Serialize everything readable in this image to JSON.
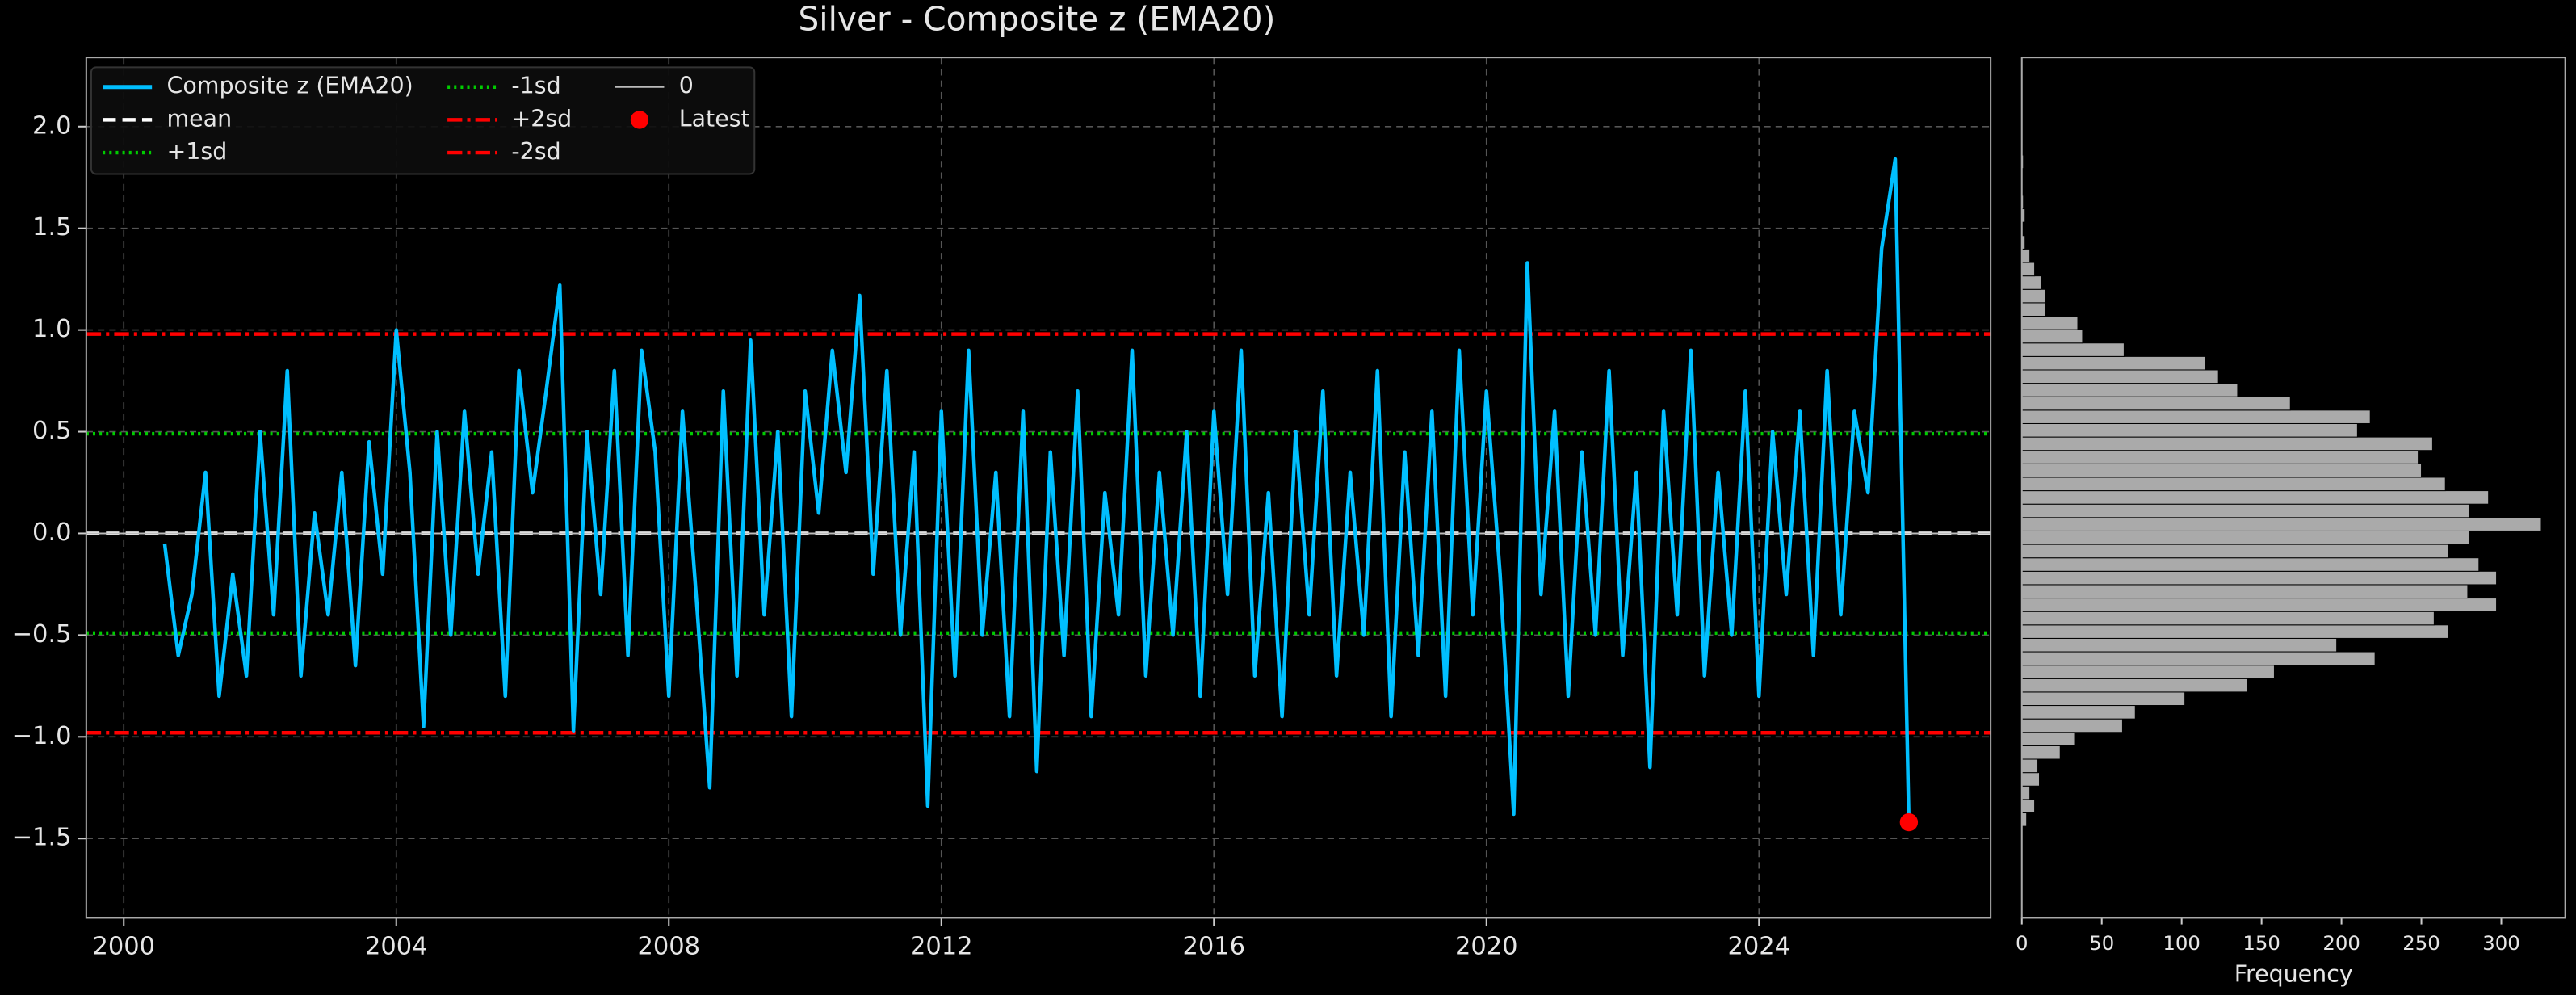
{
  "chart_data": [
    {
      "type": "line",
      "title": "Silver - Composite z (EMA20)",
      "x": [
        2000.6,
        2000.8,
        2001.0,
        2001.2,
        2001.4,
        2001.6,
        2001.8,
        2002.0,
        2002.2,
        2002.4,
        2002.6,
        2002.8,
        2003.0,
        2003.2,
        2003.4,
        2003.6,
        2003.8,
        2004.0,
        2004.2,
        2004.4,
        2004.6,
        2004.8,
        2005.0,
        2005.2,
        2005.4,
        2005.6,
        2005.8,
        2006.0,
        2006.2,
        2006.4,
        2006.6,
        2006.8,
        2007.0,
        2007.2,
        2007.4,
        2007.6,
        2007.8,
        2008.0,
        2008.2,
        2008.4,
        2008.6,
        2008.8,
        2009.0,
        2009.2,
        2009.4,
        2009.6,
        2009.8,
        2010.0,
        2010.2,
        2010.4,
        2010.6,
        2010.8,
        2011.0,
        2011.2,
        2011.4,
        2011.6,
        2011.8,
        2012.0,
        2012.2,
        2012.4,
        2012.6,
        2012.8,
        2013.0,
        2013.2,
        2013.4,
        2013.6,
        2013.8,
        2014.0,
        2014.2,
        2014.4,
        2014.6,
        2014.8,
        2015.0,
        2015.2,
        2015.4,
        2015.6,
        2015.8,
        2016.0,
        2016.2,
        2016.4,
        2016.6,
        2016.8,
        2017.0,
        2017.2,
        2017.4,
        2017.6,
        2017.8,
        2018.0,
        2018.2,
        2018.4,
        2018.6,
        2018.8,
        2019.0,
        2019.2,
        2019.4,
        2019.6,
        2019.8,
        2020.0,
        2020.2,
        2020.4,
        2020.6,
        2020.8,
        2021.0,
        2021.2,
        2021.4,
        2021.6,
        2021.8,
        2022.0,
        2022.2,
        2022.4,
        2022.6,
        2022.8,
        2023.0,
        2023.2,
        2023.4,
        2023.6,
        2023.8,
        2024.0,
        2024.2,
        2024.4,
        2024.6,
        2024.8,
        2025.0,
        2025.2,
        2025.4,
        2025.6,
        2025.8,
        2026.0,
        2026.2
      ],
      "series": [
        {
          "name": "Composite z (EMA20)",
          "color": "#00bfff",
          "values": [
            -0.05,
            -0.6,
            -0.3,
            0.3,
            -0.8,
            -0.2,
            -0.7,
            0.5,
            -0.4,
            0.8,
            -0.7,
            0.1,
            -0.4,
            0.3,
            -0.65,
            0.45,
            -0.2,
            1.0,
            0.3,
            -0.95,
            0.5,
            -0.5,
            0.6,
            -0.2,
            0.4,
            -0.8,
            0.8,
            0.2,
            0.7,
            1.22,
            -0.97,
            0.5,
            -0.3,
            0.8,
            -0.6,
            0.9,
            0.4,
            -0.8,
            0.6,
            -0.3,
            -1.25,
            0.7,
            -0.7,
            0.95,
            -0.4,
            0.5,
            -0.9,
            0.7,
            0.1,
            0.9,
            0.3,
            1.17,
            -0.2,
            0.8,
            -0.5,
            0.4,
            -1.34,
            0.6,
            -0.7,
            0.9,
            -0.5,
            0.3,
            -0.9,
            0.6,
            -1.17,
            0.4,
            -0.6,
            0.7,
            -0.9,
            0.2,
            -0.4,
            0.9,
            -0.7,
            0.3,
            -0.5,
            0.5,
            -0.8,
            0.6,
            -0.3,
            0.9,
            -0.7,
            0.2,
            -0.9,
            0.5,
            -0.4,
            0.7,
            -0.7,
            0.3,
            -0.5,
            0.8,
            -0.9,
            0.4,
            -0.6,
            0.6,
            -0.8,
            0.9,
            -0.4,
            0.7,
            -0.2,
            -1.38,
            1.33,
            -0.3,
            0.6,
            -0.8,
            0.4,
            -0.5,
            0.8,
            -0.6,
            0.3,
            -1.15,
            0.6,
            -0.4,
            0.9,
            -0.7,
            0.3,
            -0.5,
            0.7,
            -0.8,
            0.5,
            -0.3,
            0.6,
            -0.6,
            0.8,
            -0.4,
            0.6,
            0.2,
            1.4,
            1.84,
            -1.42
          ]
        }
      ],
      "reference_lines": [
        {
          "name": "mean",
          "value": 0,
          "color": "#ffffff",
          "style": "dashed"
        },
        {
          "name": "+1sd",
          "value": 0.49,
          "color": "#00cc00",
          "style": "dotted"
        },
        {
          "name": "-1sd",
          "value": -0.49,
          "color": "#00cc00",
          "style": "dotted"
        },
        {
          "name": "+2sd",
          "value": 0.98,
          "color": "#ff0000",
          "style": "dashdot"
        },
        {
          "name": "-2sd",
          "value": -0.98,
          "color": "#ff0000",
          "style": "dashdot"
        },
        {
          "name": "0",
          "value": 0,
          "color": "#bbbbbb",
          "style": "solid"
        }
      ],
      "latest": {
        "name": "Latest",
        "x": 2026.2,
        "value": -1.42,
        "color": "#ff0000"
      },
      "xlim": [
        1999.45,
        2027.4
      ],
      "xticks": [
        2000,
        2004,
        2008,
        2012,
        2016,
        2020,
        2024
      ],
      "ylim": [
        -1.89,
        2.34
      ],
      "yticks": [
        {
          "value": -1.5,
          "label": "−1.5"
        },
        {
          "value": -1.0,
          "label": "−1.0"
        },
        {
          "value": -0.5,
          "label": "−0.5"
        },
        {
          "value": 0,
          "label": "0.0"
        },
        {
          "value": 0.5,
          "label": "0.5"
        },
        {
          "value": 1.0,
          "label": "1.0"
        },
        {
          "value": 1.5,
          "label": "1.5"
        },
        {
          "value": 2.0,
          "label": "2.0"
        }
      ],
      "grid": true,
      "legend": "upper left"
    },
    {
      "type": "histogram",
      "orientation": "horizontal",
      "color": "#aaaaaa",
      "bins": [
        -1.44,
        -1.374,
        -1.308,
        -1.242,
        -1.176,
        -1.11,
        -1.044,
        -0.978,
        -0.912,
        -0.846,
        -0.78,
        -0.714,
        -0.648,
        -0.582,
        -0.516,
        -0.45,
        -0.384,
        -0.318,
        -0.252,
        -0.186,
        -0.12,
        -0.054,
        0.012,
        0.078,
        0.144,
        0.21,
        0.276,
        0.342,
        0.408,
        0.474,
        0.54,
        0.606,
        0.672,
        0.738,
        0.804,
        0.87,
        0.936,
        1.002,
        1.068,
        1.134,
        1.2,
        1.266,
        1.332,
        1.398,
        1.464,
        1.53,
        1.596,
        1.662,
        1.728,
        1.794,
        1.86
      ],
      "counts": [
        3,
        8,
        5,
        11,
        10,
        24,
        33,
        63,
        71,
        102,
        141,
        158,
        221,
        197,
        267,
        258,
        297,
        279,
        297,
        286,
        267,
        280,
        325,
        280,
        292,
        265,
        250,
        248,
        257,
        210,
        218,
        168,
        135,
        123,
        115,
        64,
        38,
        35,
        15,
        15,
        12,
        8,
        5,
        2,
        0,
        2,
        1,
        0,
        0,
        1
      ],
      "xlim": [
        0,
        340
      ],
      "xticks": [
        0,
        50,
        100,
        150,
        200,
        250,
        300
      ],
      "xlabel": "Frequency",
      "ylim": [
        -1.89,
        2.34
      ]
    }
  ]
}
